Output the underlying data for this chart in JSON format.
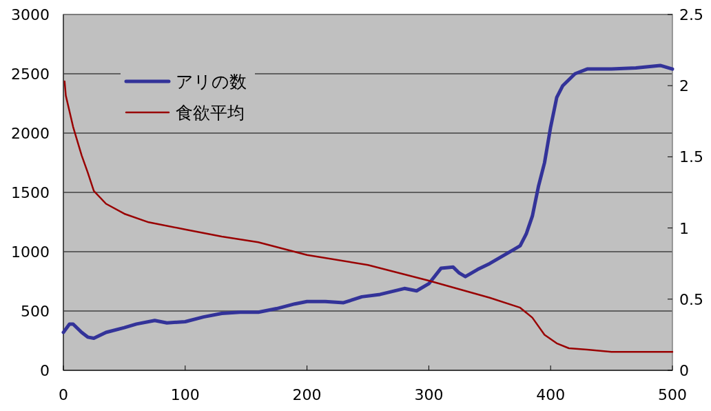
{
  "chart_data": {
    "type": "line",
    "x": [
      0,
      5,
      8,
      15,
      20,
      25,
      35,
      50,
      60,
      75,
      85,
      100,
      115,
      130,
      145,
      160,
      175,
      190,
      200,
      215,
      230,
      245,
      260,
      280,
      290,
      300,
      310,
      320,
      325,
      330,
      340,
      350,
      360,
      370,
      375,
      380,
      385,
      390,
      395,
      400,
      405,
      410,
      420,
      430,
      450,
      470,
      490,
      500
    ],
    "series": [
      {
        "name": "アリの数",
        "color": "#333399",
        "values": [
          320,
          390,
          390,
          320,
          280,
          270,
          320,
          360,
          390,
          420,
          400,
          410,
          450,
          480,
          490,
          490,
          520,
          560,
          580,
          580,
          570,
          620,
          640,
          690,
          670,
          730,
          860,
          870,
          820,
          790,
          850,
          900,
          960,
          1020,
          1050,
          1150,
          1300,
          1550,
          1750,
          2050,
          2300,
          2400,
          2500,
          2540,
          2540,
          2550,
          2570,
          2540
        ]
      },
      {
        "name": "食欲平均",
        "color": "#990000",
        "axis": "y2",
        "x": [
          1,
          2,
          8,
          15,
          20,
          25,
          35,
          50,
          70,
          100,
          130,
          160,
          200,
          250,
          300,
          350,
          375,
          385,
          395,
          405,
          415,
          430,
          450,
          500
        ],
        "values": [
          2.03,
          1.93,
          1.71,
          1.51,
          1.39,
          1.26,
          1.17,
          1.1,
          1.04,
          0.99,
          0.94,
          0.9,
          0.81,
          0.74,
          0.63,
          0.51,
          0.44,
          0.37,
          0.25,
          0.19,
          0.155,
          0.145,
          0.13,
          0.13
        ]
      }
    ],
    "xlim": [
      0,
      500
    ],
    "xticks": [
      0,
      100,
      200,
      300,
      400,
      500
    ],
    "ylim": [
      0,
      3000
    ],
    "yticks": [
      0,
      500,
      1000,
      1500,
      2000,
      2500,
      3000
    ],
    "y2lim": [
      0,
      2.5
    ],
    "y2ticks": [
      0,
      0.5,
      1,
      1.5,
      2,
      2.5
    ],
    "grid": "y",
    "legend": "top left"
  }
}
